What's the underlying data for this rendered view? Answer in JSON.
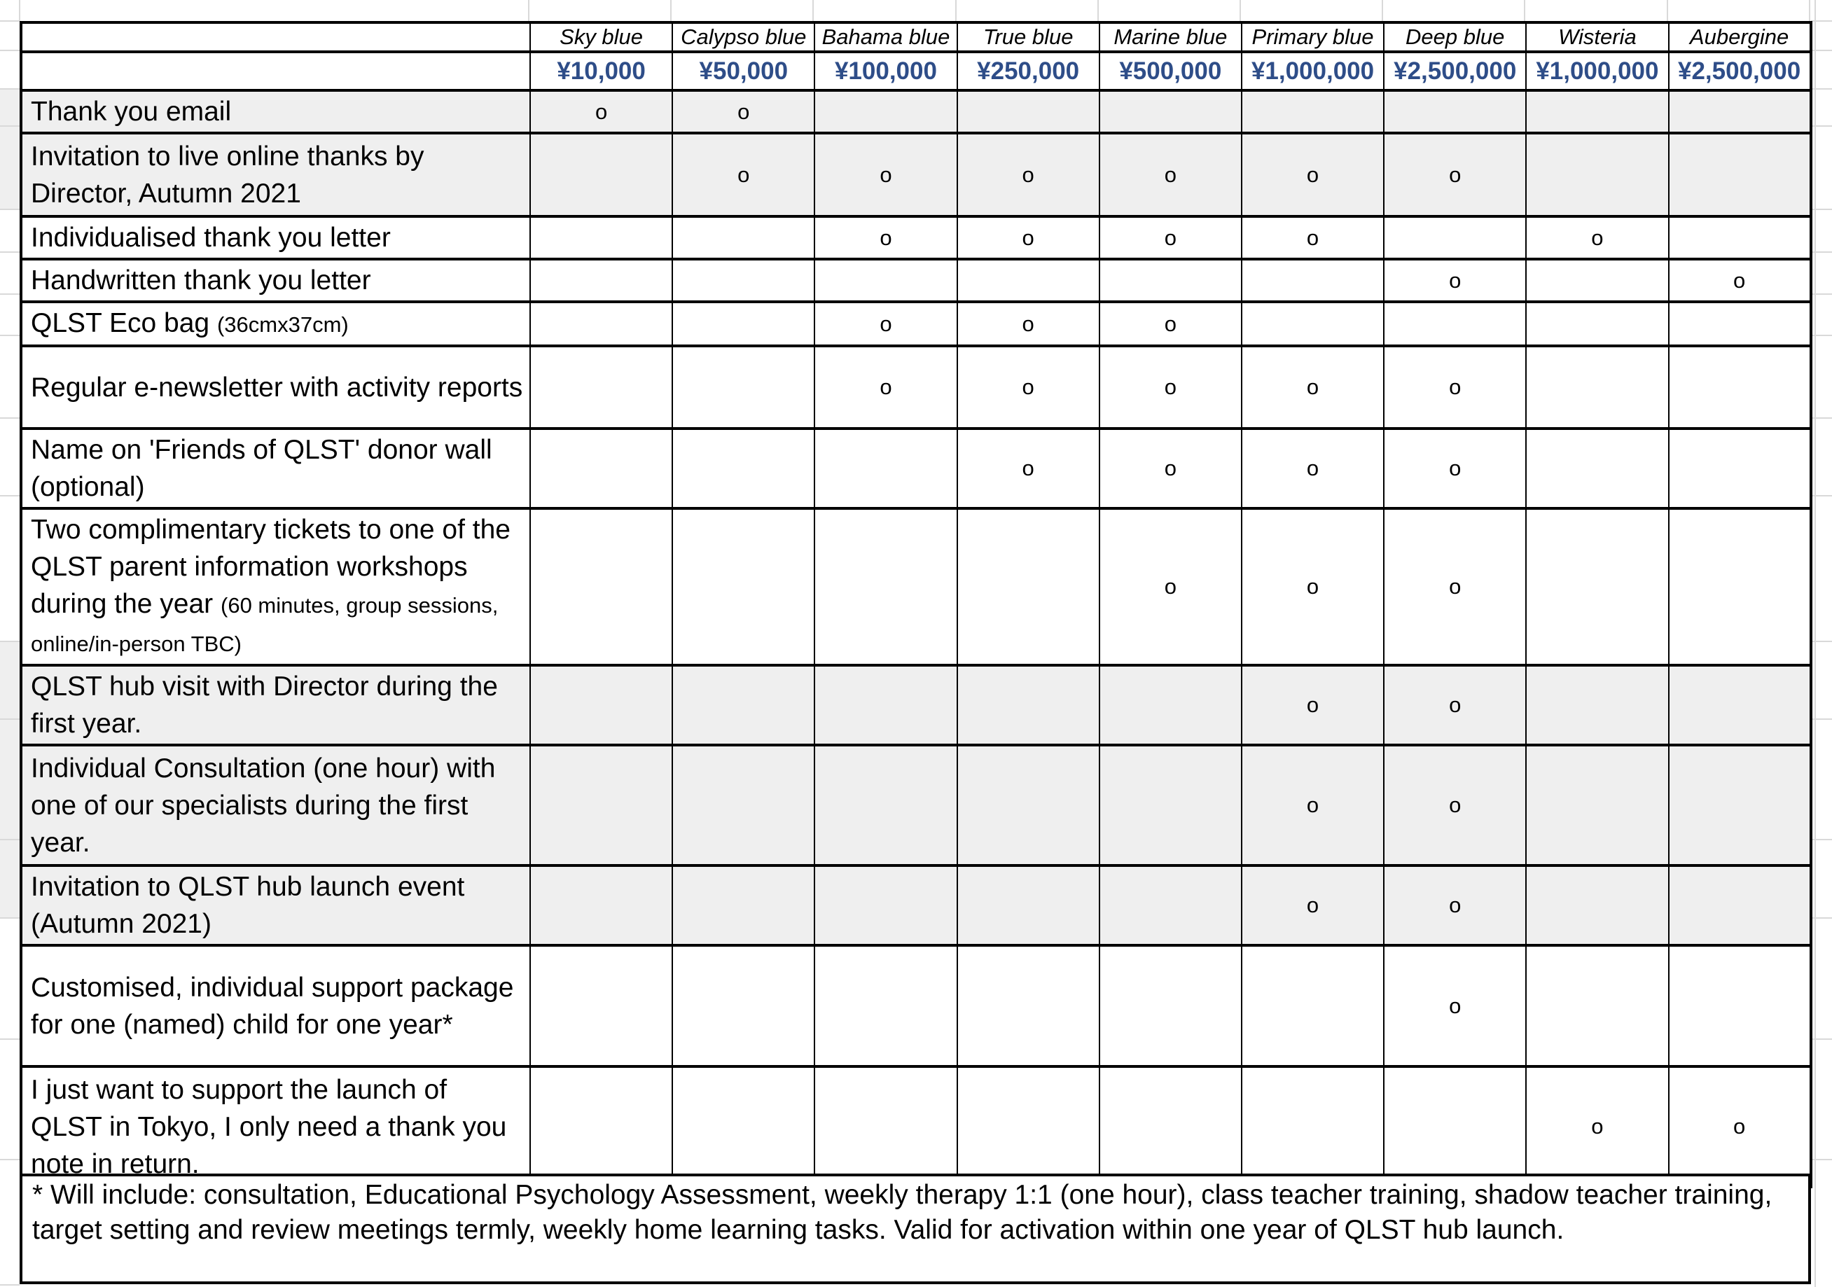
{
  "table": {
    "marker": "o",
    "tiers": [
      {
        "name": "Sky blue",
        "price": "¥10,000"
      },
      {
        "name": "Calypso blue",
        "price": "¥50,000"
      },
      {
        "name": "Bahama blue",
        "price": "¥100,000"
      },
      {
        "name": "True blue",
        "price": "¥250,000"
      },
      {
        "name": "Marine blue",
        "price": "¥500,000"
      },
      {
        "name": "Primary blue",
        "price": "¥1,000,000"
      },
      {
        "name": "Deep blue",
        "price": "¥2,500,000"
      },
      {
        "name": "Wisteria",
        "price": "¥1,000,000"
      },
      {
        "name": "Aubergine",
        "price": "¥2,500,000"
      }
    ],
    "rows": [
      {
        "label": "Thank you email",
        "note": "",
        "cols": [
          1,
          2
        ],
        "shaded": true
      },
      {
        "label": "Invitation to live online thanks by Director, Autumn 2021",
        "note": "",
        "cols": [
          2,
          3,
          4,
          5,
          6,
          7
        ],
        "shaded": true
      },
      {
        "label": "Individualised thank you letter",
        "note": "",
        "cols": [
          3,
          4,
          5,
          6,
          8
        ],
        "shaded": false
      },
      {
        "label": "Handwritten thank you letter",
        "note": "",
        "cols": [
          7,
          9
        ],
        "shaded": false
      },
      {
        "label": "QLST Eco bag",
        "note": "(36cmx37cm)",
        "cols": [
          3,
          4,
          5
        ],
        "shaded": false
      },
      {
        "label": "Regular e-newsletter with activity reports",
        "note": "",
        "cols": [
          3,
          4,
          5,
          6,
          7
        ],
        "shaded": false
      },
      {
        "label": "Name on 'Friends of QLST' donor wall (optional)",
        "note": "",
        "cols": [
          4,
          5,
          6,
          7
        ],
        "shaded": false
      },
      {
        "label": "Two complimentary tickets to one of the QLST parent information workshops during the year",
        "note": "(60 minutes, group sessions, online/in-person TBC)",
        "cols": [
          5,
          6,
          7
        ],
        "shaded": false
      },
      {
        "label": "QLST hub visit with Director during the first year.",
        "note": "",
        "cols": [
          6,
          7
        ],
        "shaded": true
      },
      {
        "label": "Individual Consultation (one hour) with one of our specialists during the first year.",
        "note": "",
        "cols": [
          6,
          7
        ],
        "shaded": true
      },
      {
        "label": "Invitation to QLST hub launch event (Autumn 2021)",
        "note": "",
        "cols": [
          6,
          7
        ],
        "shaded": true
      },
      {
        "label": "Customised, individual support package for one (named) child for one year*",
        "note": "",
        "cols": [
          7
        ],
        "shaded": false
      },
      {
        "label": "I just want to support the launch of QLST in Tokyo, I only need a thank you note in return.",
        "note": "",
        "cols": [
          8,
          9
        ],
        "shaded": false
      }
    ],
    "footnote": "* Will include: consultation, Educational Psychology Assessment, weekly therapy 1:1 (one hour), class teacher training, shadow teacher training, target setting and review meetings termly, weekly home learning tasks. Valid for activation within one year of QLST hub launch.",
    "colors": {
      "price_text": "#2e4d88",
      "shaded_row": "#efefef",
      "border": "#000000",
      "gridline": "#d9d9d9"
    }
  }
}
